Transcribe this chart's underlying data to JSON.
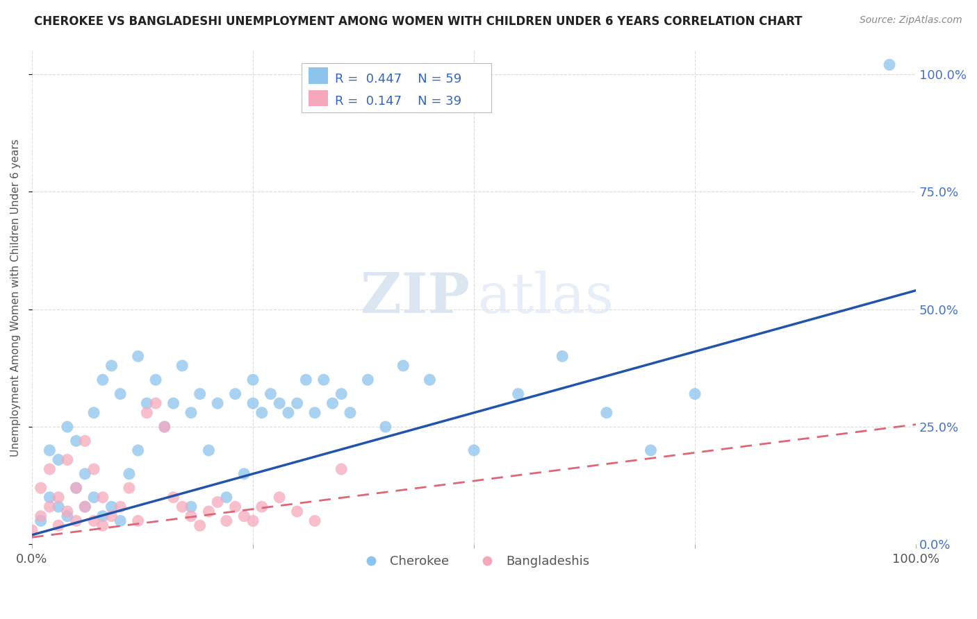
{
  "title": "CHEROKEE VS BANGLADESHI UNEMPLOYMENT AMONG WOMEN WITH CHILDREN UNDER 6 YEARS CORRELATION CHART",
  "source": "Source: ZipAtlas.com",
  "ylabel": "Unemployment Among Women with Children Under 6 years",
  "xlim": [
    0.0,
    1.0
  ],
  "ylim": [
    0.0,
    1.05
  ],
  "cherokee_color": "#8cc4ed",
  "bangladeshi_color": "#f5a8bc",
  "cherokee_line_color": "#2255aa",
  "bangladeshi_line_color": "#dd6677",
  "cherokee_R": 0.447,
  "cherokee_N": 59,
  "bangladeshi_R": 0.147,
  "bangladeshi_N": 39,
  "watermark_zip": "ZIP",
  "watermark_atlas": "atlas",
  "legend_cherokee": "Cherokee",
  "legend_bangladeshi": "Bangladeshis",
  "background_color": "#ffffff",
  "grid_color": "#cccccc",
  "cherokee_line_start_y": 0.02,
  "cherokee_line_end_y": 0.54,
  "bangladeshi_line_start_y": 0.015,
  "bangladeshi_line_end_y": 0.255
}
